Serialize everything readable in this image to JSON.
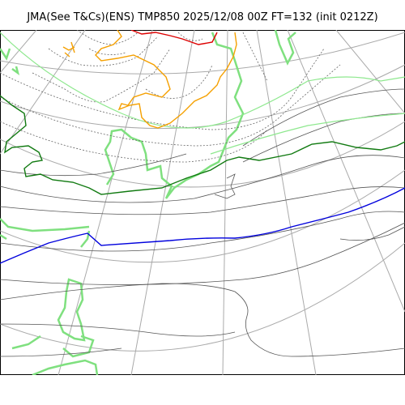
{
  "title": "JMA(See T&Cs)(ENS) TMP850 2025/12/08 00Z FT=132 (init 0212Z)",
  "colors": {
    "graticule": "#aaaaaa",
    "coastline": "#7fe07f",
    "contour_dotted": "#666666",
    "contour_solid": "#555555",
    "isotherm_warm_light": "#8ee88e",
    "isotherm_green": "#117a11",
    "isotherm_blue": "#0000dd",
    "isotherm_orange": "#f5a000",
    "isotherm_red": "#dd0000"
  }
}
